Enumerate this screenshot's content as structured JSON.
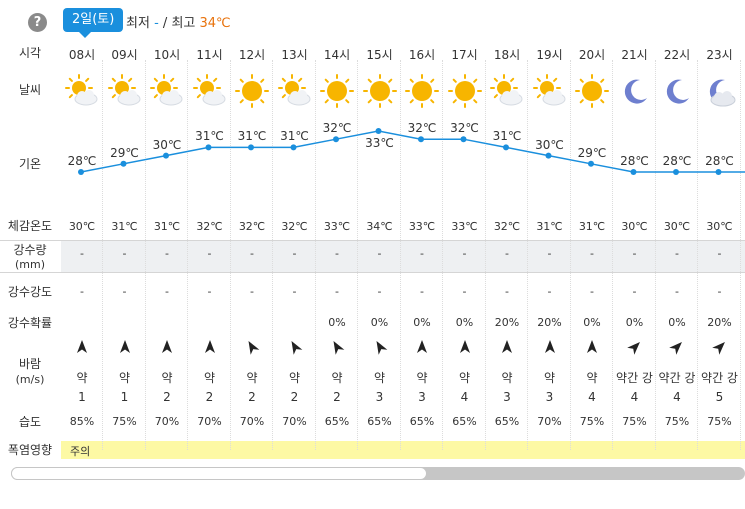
{
  "header": {
    "help_icon": "question-circle-icon",
    "date_badge": "2일(토)",
    "min_label": "최저",
    "min_value": "-",
    "separator": "/",
    "max_label": "최고",
    "max_value": "34℃"
  },
  "row_labels": {
    "time": "시각",
    "weather": "날씨",
    "temperature": "기온",
    "feels_like": "체감온도",
    "precip_amount": "강수량",
    "precip_amount_unit": "(mm)",
    "precip_intensity": "강수강도",
    "precip_prob": "강수확률",
    "wind": "바람",
    "wind_unit": "(m/s)",
    "humidity": "습도",
    "heat_impact": "폭염영향"
  },
  "heat_impact_value": "주의",
  "hours": [
    {
      "time": "08시",
      "icon": "sun-cloud-icon",
      "temp": "28℃",
      "temp_value": 28,
      "feels": "30℃",
      "precip": "-",
      "intensity": "-",
      "prob": "",
      "wind_dir": 90,
      "wind_text": "약",
      "wind_speed": "1",
      "humidity": "85%"
    },
    {
      "time": "09시",
      "icon": "sun-cloud-icon",
      "temp": "29℃",
      "temp_value": 29,
      "feels": "31℃",
      "precip": "-",
      "intensity": "-",
      "prob": "",
      "wind_dir": 90,
      "wind_text": "약",
      "wind_speed": "1",
      "humidity": "75%"
    },
    {
      "time": "10시",
      "icon": "sun-cloud-icon",
      "temp": "30℃",
      "temp_value": 30,
      "feels": "31℃",
      "precip": "-",
      "intensity": "-",
      "prob": "",
      "wind_dir": 90,
      "wind_text": "약",
      "wind_speed": "2",
      "humidity": "70%"
    },
    {
      "time": "11시",
      "icon": "sun-cloud-icon",
      "temp": "31℃",
      "temp_value": 31,
      "feels": "32℃",
      "precip": "-",
      "intensity": "-",
      "prob": "",
      "wind_dir": 90,
      "wind_text": "약",
      "wind_speed": "2",
      "humidity": "70%"
    },
    {
      "time": "12시",
      "icon": "sun-icon",
      "temp": "31℃",
      "temp_value": 31,
      "feels": "32℃",
      "precip": "-",
      "intensity": "-",
      "prob": "",
      "wind_dir": 60,
      "wind_text": "약",
      "wind_speed": "2",
      "humidity": "70%"
    },
    {
      "time": "13시",
      "icon": "sun-cloud-icon",
      "temp": "31℃",
      "temp_value": 31,
      "feels": "32℃",
      "precip": "-",
      "intensity": "-",
      "prob": "",
      "wind_dir": 60,
      "wind_text": "약",
      "wind_speed": "2",
      "humidity": "70%"
    },
    {
      "time": "14시",
      "icon": "sun-icon",
      "temp": "32℃",
      "temp_value": 32,
      "feels": "33℃",
      "precip": "-",
      "intensity": "-",
      "prob": "0%",
      "wind_dir": 60,
      "wind_text": "약",
      "wind_speed": "2",
      "humidity": "65%"
    },
    {
      "time": "15시",
      "icon": "sun-icon",
      "temp": "33℃",
      "temp_value": 33,
      "feels": "34℃",
      "precip": "-",
      "intensity": "-",
      "prob": "0%",
      "wind_dir": 60,
      "wind_text": "약",
      "wind_speed": "3",
      "humidity": "65%"
    },
    {
      "time": "16시",
      "icon": "sun-icon",
      "temp": "32℃",
      "temp_value": 32,
      "feels": "33℃",
      "precip": "-",
      "intensity": "-",
      "prob": "0%",
      "wind_dir": 90,
      "wind_text": "약",
      "wind_speed": "3",
      "humidity": "65%"
    },
    {
      "time": "17시",
      "icon": "sun-icon",
      "temp": "32℃",
      "temp_value": 32,
      "feels": "33℃",
      "precip": "-",
      "intensity": "-",
      "prob": "0%",
      "wind_dir": 90,
      "wind_text": "약",
      "wind_speed": "4",
      "humidity": "65%"
    },
    {
      "time": "18시",
      "icon": "sun-cloud-icon",
      "temp": "31℃",
      "temp_value": 31,
      "feels": "32℃",
      "precip": "-",
      "intensity": "-",
      "prob": "20%",
      "wind_dir": 90,
      "wind_text": "약",
      "wind_speed": "3",
      "humidity": "65%"
    },
    {
      "time": "19시",
      "icon": "sun-cloud-icon",
      "temp": "30℃",
      "temp_value": 30,
      "feels": "31℃",
      "precip": "-",
      "intensity": "-",
      "prob": "20%",
      "wind_dir": 90,
      "wind_text": "약",
      "wind_speed": "3",
      "humidity": "70%"
    },
    {
      "time": "20시",
      "icon": "sun-icon",
      "temp": "29℃",
      "temp_value": 29,
      "feels": "31℃",
      "precip": "-",
      "intensity": "-",
      "prob": "0%",
      "wind_dir": 90,
      "wind_text": "약",
      "wind_speed": "4",
      "humidity": "75%"
    },
    {
      "time": "21시",
      "icon": "moon-icon",
      "temp": "28℃",
      "temp_value": 28,
      "feels": "30℃",
      "precip": "-",
      "intensity": "-",
      "prob": "0%",
      "wind_dir": 135,
      "wind_text": "약간 강",
      "wind_speed": "4",
      "humidity": "75%"
    },
    {
      "time": "22시",
      "icon": "moon-icon",
      "temp": "28℃",
      "temp_value": 28,
      "feels": "30℃",
      "precip": "-",
      "intensity": "-",
      "prob": "0%",
      "wind_dir": 135,
      "wind_text": "약간 강",
      "wind_speed": "4",
      "humidity": "75%"
    },
    {
      "time": "23시",
      "icon": "moon-cloud-icon",
      "temp": "28℃",
      "temp_value": 28,
      "feels": "30℃",
      "precip": "-",
      "intensity": "-",
      "prob": "20%",
      "wind_dir": 135,
      "wind_text": "약간 강",
      "wind_speed": "5",
      "humidity": "75%"
    }
  ],
  "colors": {
    "accent": "#1a8fdd",
    "max_temp": "#e8720c",
    "heat_band": "#fdf9a4",
    "sun": "#f7b500",
    "moon": "#6e7fcf"
  }
}
